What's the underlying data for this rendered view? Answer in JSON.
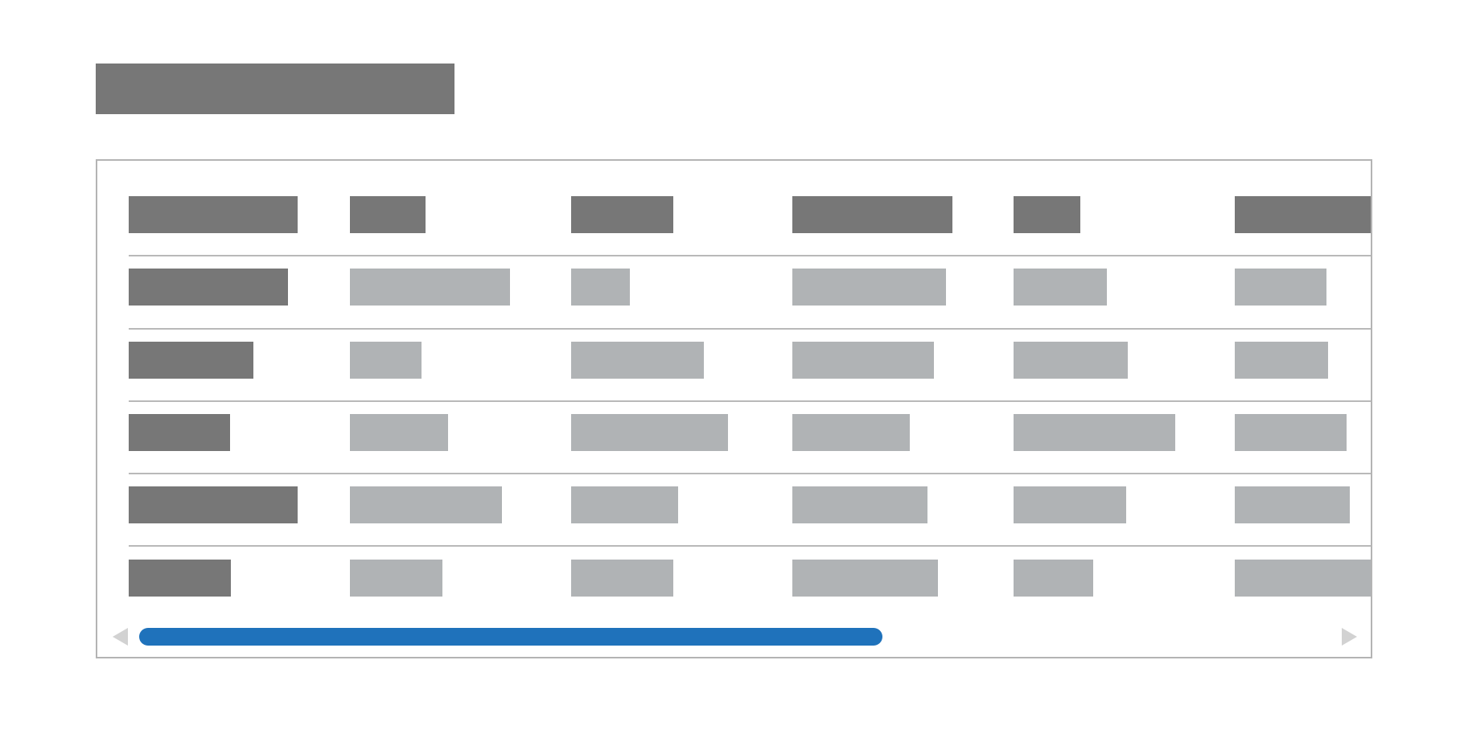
{
  "colors": {
    "header_bar": "#777777",
    "row_label_bar": "#777777",
    "value_bar": "#b0b3b5",
    "divider": "#b9b9b9",
    "frame_border": "#b4b4b4",
    "scroll_thumb": "#1f72bb",
    "scroll_arrow": "#d2d2d2"
  },
  "icons": {
    "scroll_left": "triangle-left-icon",
    "scroll_right": "triangle-right-icon"
  },
  "scrollbar": {
    "visible_fraction": 0.58,
    "position": 0.0
  },
  "table": {
    "columns": 6,
    "body_rows": 5
  }
}
